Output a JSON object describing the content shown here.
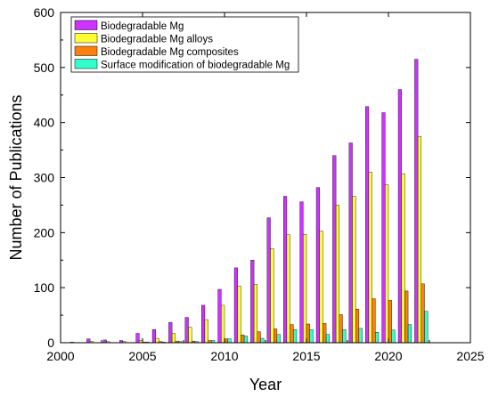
{
  "chart_data": {
    "type": "bar",
    "title": "",
    "xlabel": "Year",
    "ylabel": "Number of Publications",
    "xlim": [
      2000,
      2025
    ],
    "ylim": [
      0,
      600
    ],
    "xticks": [
      2000,
      2005,
      2010,
      2015,
      2020,
      2025
    ],
    "yticks": [
      0,
      100,
      200,
      300,
      400,
      500,
      600
    ],
    "grid": false,
    "legend_position": "top-left",
    "categories": [
      2001,
      2002,
      2003,
      2004,
      2005,
      2006,
      2007,
      2008,
      2009,
      2010,
      2011,
      2012,
      2013,
      2014,
      2015,
      2016,
      2017,
      2018,
      2019,
      2020,
      2021,
      2022
    ],
    "series": [
      {
        "name": "Biodegradable Mg",
        "color": "#cc33ff",
        "values": [
          1,
          7,
          5,
          4,
          17,
          24,
          37,
          46,
          68,
          97,
          136,
          150,
          227,
          266,
          256,
          282,
          340,
          363,
          429,
          418,
          460,
          515
        ]
      },
      {
        "name": "Biodegradable Mg alloys",
        "color": "#ffff33",
        "values": [
          0,
          2,
          2,
          2,
          4,
          8,
          17,
          28,
          42,
          68,
          103,
          106,
          171,
          196,
          197,
          203,
          250,
          266,
          310,
          287,
          307,
          375
        ]
      },
      {
        "name": "Biodegradable Mg composites",
        "color": "#ff7f0e",
        "values": [
          0,
          0,
          0,
          0,
          1,
          2,
          3,
          3,
          4,
          7,
          14,
          20,
          25,
          33,
          34,
          35,
          51,
          61,
          80,
          77,
          94,
          107
        ]
      },
      {
        "name": "Surface modification of biodegradable Mg",
        "color": "#33ffcc",
        "values": [
          0,
          0,
          0,
          0,
          1,
          1,
          2,
          2,
          4,
          7,
          12,
          8,
          15,
          24,
          24,
          15,
          24,
          26,
          19,
          23,
          33,
          57
        ]
      }
    ]
  }
}
